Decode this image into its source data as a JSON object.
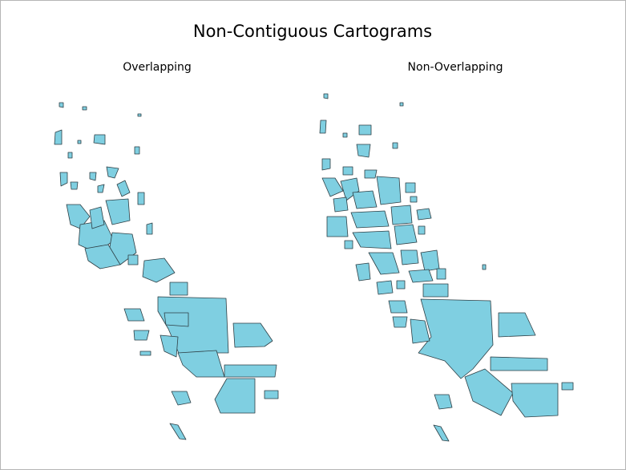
{
  "header": {
    "title": "Non-Contiguous Cartograms"
  },
  "panels": [
    {
      "label": "Overlapping"
    },
    {
      "label": "Non-Overlapping"
    }
  ]
}
